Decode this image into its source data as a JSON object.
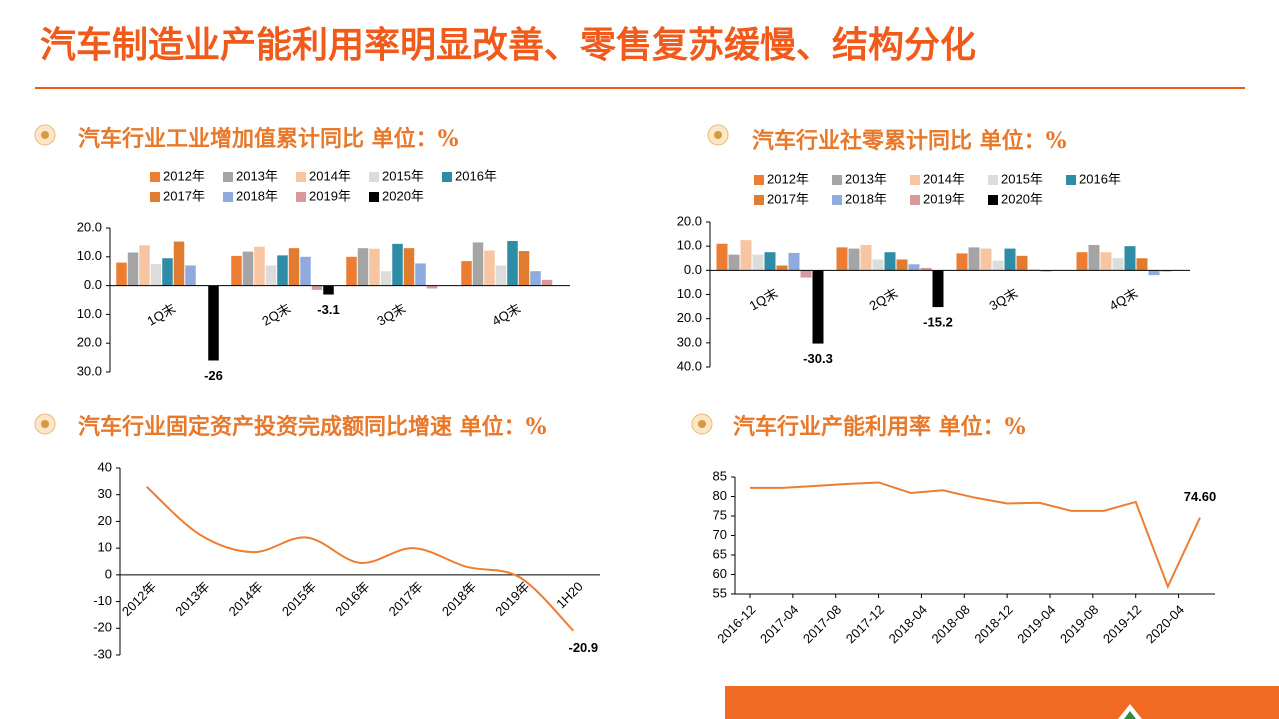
{
  "title": "汽车制造业产能利用率明显改善、零售复苏缓慢、结构分化",
  "chart_data": [
    {
      "type": "bar",
      "title": "汽车行业工业增加值累计同比 单位：%",
      "categories": [
        "1Q末",
        "2Q末",
        "3Q末",
        "4Q末"
      ],
      "series": [
        {
          "name": "2012年",
          "color": "#ed7d31",
          "values": [
            8,
            10.3,
            10,
            8.5
          ]
        },
        {
          "name": "2013年",
          "color": "#a5a5a5",
          "values": [
            11.5,
            11.8,
            13,
            15
          ]
        },
        {
          "name": "2014年",
          "color": "#f8c5a2",
          "values": [
            14,
            13.5,
            12.8,
            12.2
          ]
        },
        {
          "name": "2015年",
          "color": "#dcdcdc",
          "values": [
            7.5,
            7,
            5,
            7
          ]
        },
        {
          "name": "2016年",
          "color": "#2e8ca6",
          "values": [
            9.5,
            10.5,
            14.5,
            15.5
          ]
        },
        {
          "name": "2017年",
          "color": "#e07b30",
          "values": [
            15.3,
            13,
            13,
            12
          ]
        },
        {
          "name": "2018年",
          "color": "#8faadc",
          "values": [
            7,
            10,
            7.7,
            5
          ]
        },
        {
          "name": "2019年",
          "color": "#d9999b",
          "values": [
            0.2,
            -1.5,
            -1,
            2
          ]
        },
        {
          "name": "2020年",
          "color": "#000000",
          "label_color": "#e02020",
          "values": [
            -26,
            -3.1,
            null,
            null
          ],
          "value_labels": [
            "-26",
            "-3.1",
            null,
            null
          ]
        }
      ],
      "ylim": [
        -30,
        20
      ],
      "yticks": [
        {
          "value": 20,
          "label": "20.0"
        },
        {
          "value": 10,
          "label": "10.0"
        },
        {
          "value": 0,
          "label": "0.0"
        },
        {
          "value": -10,
          "label": "10.0"
        },
        {
          "value": -20,
          "label": "20.0"
        },
        {
          "value": -30,
          "label": "30.0"
        }
      ]
    },
    {
      "type": "bar",
      "title": "汽车行业社零累计同比 单位：%",
      "categories": [
        "1Q末",
        "2Q末",
        "3Q末",
        "4Q末"
      ],
      "series": [
        {
          "name": "2012年",
          "color": "#ed7d31",
          "values": [
            11,
            9.5,
            7,
            7.5
          ]
        },
        {
          "name": "2013年",
          "color": "#a5a5a5",
          "values": [
            6.5,
            9,
            9.5,
            10.5
          ]
        },
        {
          "name": "2014年",
          "color": "#f8c5a2",
          "values": [
            12.5,
            10.5,
            9,
            7.5
          ]
        },
        {
          "name": "2015年",
          "color": "#dcdcdc",
          "values": [
            6.5,
            4.5,
            4,
            5
          ]
        },
        {
          "name": "2016年",
          "color": "#2e8ca6",
          "values": [
            7.5,
            7.5,
            9,
            10
          ]
        },
        {
          "name": "2017年",
          "color": "#e07b30",
          "values": [
            2,
            4.5,
            6,
            5
          ]
        },
        {
          "name": "2018年",
          "color": "#8faadc",
          "values": [
            7.2,
            2.5,
            0.3,
            -2
          ]
        },
        {
          "name": "2019年",
          "color": "#d9999b",
          "values": [
            -3,
            1,
            -0.5,
            -0.5
          ]
        },
        {
          "name": "2020年",
          "color": "#000000",
          "label_color": "#e02020",
          "values": [
            -30.3,
            -15.2,
            null,
            null
          ],
          "value_labels": [
            "-30.3",
            "-15.2",
            null,
            null
          ]
        }
      ],
      "ylim": [
        -40,
        20
      ],
      "yticks": [
        {
          "value": 20,
          "label": "20.0"
        },
        {
          "value": 10,
          "label": "10.0"
        },
        {
          "value": 0,
          "label": "0.0"
        },
        {
          "value": -10,
          "label": "10.0"
        },
        {
          "value": -20,
          "label": "20.0"
        },
        {
          "value": -30,
          "label": "30.0"
        },
        {
          "value": -40,
          "label": "40.0"
        }
      ]
    },
    {
      "type": "line",
      "title": "汽车行业固定资产投资完成额同比增速 单位：%",
      "smooth": true,
      "negative_tick_color": "#e02020",
      "categories": [
        "2012年",
        "2013年",
        "2014年",
        "2015年",
        "2016年",
        "2017年",
        "2018年",
        "2019年",
        "1H20"
      ],
      "series": [
        {
          "color": "#ed7d31",
          "label_color": "#e02020",
          "values": [
            33,
            15,
            8.5,
            14,
            4.5,
            10,
            3,
            -1,
            -20.9
          ],
          "value_labels": [
            null,
            null,
            null,
            null,
            null,
            null,
            null,
            null,
            "-20.9"
          ]
        }
      ],
      "ylim": [
        -30,
        40
      ],
      "yticks": [
        40,
        30,
        20,
        10,
        0,
        -10,
        -20,
        -30
      ]
    },
    {
      "type": "line",
      "title": "汽车行业产能利用率 单位：%",
      "x": [
        "2016-12",
        "2017-03",
        "2017-06",
        "2017-09",
        "2017-12",
        "2018-03",
        "2018-06",
        "2018-09",
        "2018-12",
        "2019-03",
        "2019-06",
        "2019-09",
        "2019-12",
        "2020-03",
        "2020-06"
      ],
      "series": [
        {
          "color": "#ed7d31",
          "label_color": "#000000",
          "values": [
            82.2,
            82.2,
            82.7,
            83.2,
            83.6,
            80.9,
            81.6,
            79.7,
            78.2,
            78.4,
            76.3,
            76.3,
            78.6,
            56.9,
            74.6
          ],
          "value_labels": [
            null,
            null,
            null,
            null,
            null,
            null,
            null,
            null,
            null,
            null,
            null,
            null,
            null,
            null,
            "74.60"
          ]
        }
      ],
      "xticks": [
        "2016-12",
        "2017-04",
        "2017-08",
        "2017-12",
        "2018-04",
        "2018-08",
        "2018-12",
        "2019-04",
        "2019-08",
        "2019-12",
        "2020-04"
      ],
      "ylim": [
        55,
        85
      ],
      "yticks": [
        55,
        60,
        65,
        70,
        75,
        80,
        85
      ]
    }
  ]
}
